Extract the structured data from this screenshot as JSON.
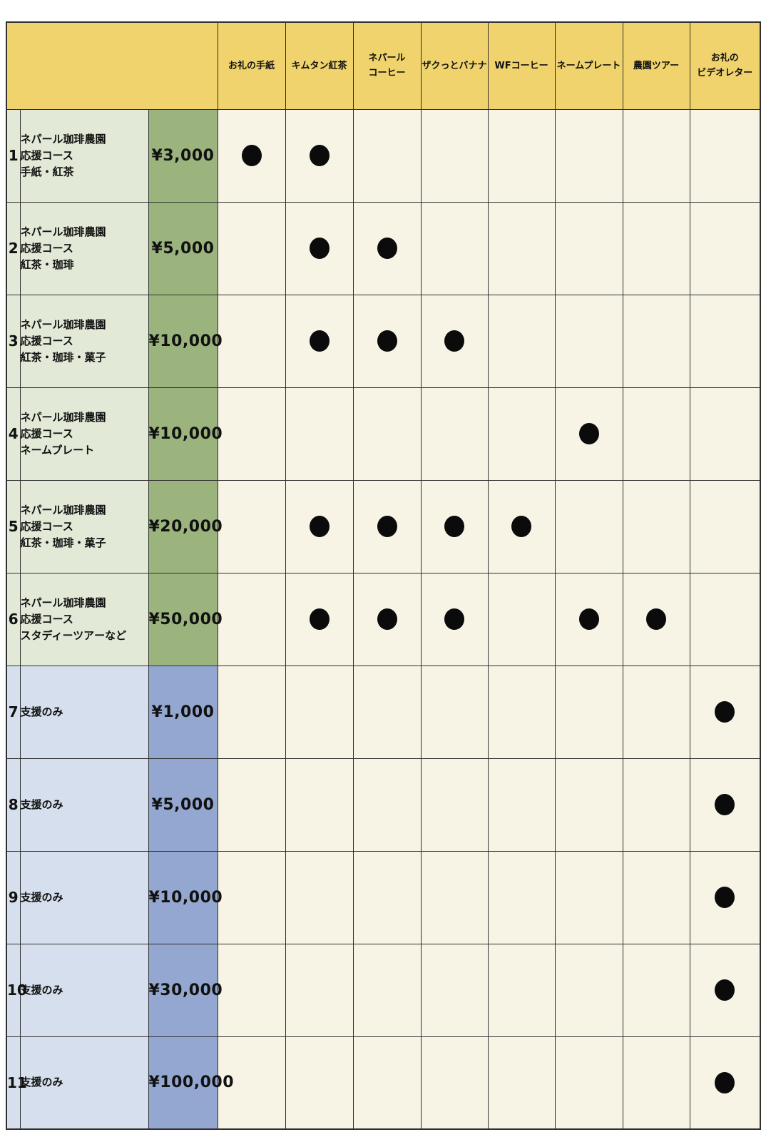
{
  "table": {
    "corner_label": "",
    "reward_columns": [
      "お礼の手紙",
      "キムタン紅茶",
      "ネパール\nコーヒー",
      "ザクっとバナナ",
      "WFコーヒー",
      "ネームプレート",
      "農園ツアー",
      "お礼の\nビデオレター"
    ],
    "rows": [
      {
        "num": "1",
        "group": "course",
        "label": "ネパール珈琲農園\n応援コース\n手紙・紅茶",
        "price": "¥3,000",
        "marks": [
          1,
          1,
          0,
          0,
          0,
          0,
          0,
          0
        ]
      },
      {
        "num": "2",
        "group": "course",
        "label": "ネパール珈琲農園\n応援コース\n紅茶・珈琲",
        "price": "¥5,000",
        "marks": [
          0,
          1,
          1,
          0,
          0,
          0,
          0,
          0
        ]
      },
      {
        "num": "3",
        "group": "course",
        "label": "ネパール珈琲農園\n応援コース\n紅茶・珈琲・菓子",
        "price": "¥10,000",
        "marks": [
          0,
          1,
          1,
          1,
          0,
          0,
          0,
          0
        ]
      },
      {
        "num": "4",
        "group": "course",
        "label": "ネパール珈琲農園\n応援コース\nネームプレート",
        "price": "¥10,000",
        "marks": [
          0,
          0,
          0,
          0,
          0,
          1,
          0,
          0
        ]
      },
      {
        "num": "5",
        "group": "course",
        "label": "ネパール珈琲農園\n応援コース\n紅茶・珈琲・菓子",
        "price": "¥20,000",
        "marks": [
          0,
          1,
          1,
          1,
          1,
          0,
          0,
          0
        ]
      },
      {
        "num": "6",
        "group": "course",
        "label": "ネパール珈琲農園\n応援コース\nスタディーツアーなど",
        "price": "¥50,000",
        "marks": [
          0,
          1,
          1,
          1,
          0,
          1,
          1,
          0
        ]
      },
      {
        "num": "7",
        "group": "support",
        "label": "支援のみ",
        "price": "¥1,000",
        "marks": [
          0,
          0,
          0,
          0,
          0,
          0,
          0,
          1
        ]
      },
      {
        "num": "8",
        "group": "support",
        "label": "支援のみ",
        "price": "¥5,000",
        "marks": [
          0,
          0,
          0,
          0,
          0,
          0,
          0,
          1
        ]
      },
      {
        "num": "9",
        "group": "support",
        "label": "支援のみ",
        "price": "¥10,000",
        "marks": [
          0,
          0,
          0,
          0,
          0,
          0,
          0,
          1
        ]
      },
      {
        "num": "10",
        "group": "support",
        "label": "支援のみ",
        "price": "¥30,000",
        "marks": [
          0,
          0,
          0,
          0,
          0,
          0,
          0,
          1
        ]
      },
      {
        "num": "11",
        "group": "support",
        "label": "支援のみ",
        "price": "¥100,000",
        "marks": [
          0,
          0,
          0,
          0,
          0,
          0,
          0,
          1
        ]
      }
    ]
  },
  "colors": {
    "header_bg": "#F0D36C",
    "cell_bg": "#F7F4E5",
    "course_label_bg": "#E2EAD7",
    "course_price_bg": "#9BB47D",
    "support_label_bg": "#D6DFED",
    "support_price_bg": "#93A7D0",
    "dot": "#0B0B0B",
    "border": "#2F2F2F",
    "text": "#111111",
    "page_bg": "#FFFFFF"
  }
}
